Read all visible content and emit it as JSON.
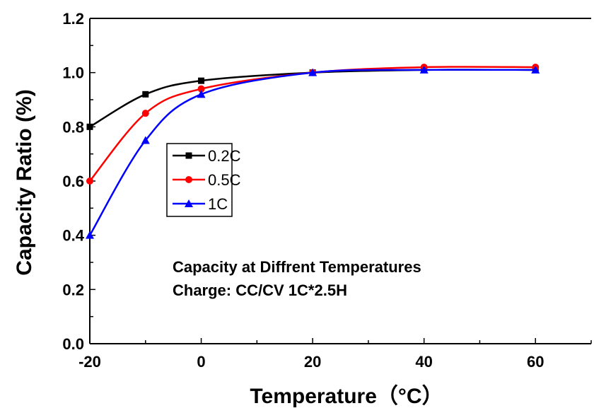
{
  "chart_data": {
    "type": "line",
    "title": "",
    "xlabel": "Temperature（°C）",
    "ylabel": "Capacity Ratio (%)",
    "xlim": [
      -20,
      70
    ],
    "ylim": [
      0.0,
      1.2
    ],
    "x_ticks": [
      "-20",
      "0",
      "20",
      "40",
      "60"
    ],
    "y_ticks": [
      "0.0",
      "0.2",
      "0.4",
      "0.6",
      "0.8",
      "1.0",
      "1.2"
    ],
    "grid": false,
    "legend_position": "center-left",
    "series": [
      {
        "name": "0.2C",
        "color": "#000000",
        "marker": "square",
        "x": [
          -20,
          -10,
          0,
          20,
          40,
          60
        ],
        "values": [
          0.8,
          0.92,
          0.97,
          1.0,
          1.01,
          1.01
        ]
      },
      {
        "name": "0.5C",
        "color": "#ff0000",
        "marker": "circle",
        "x": [
          -20,
          -10,
          0,
          20,
          40,
          60
        ],
        "values": [
          0.6,
          0.85,
          0.94,
          1.0,
          1.02,
          1.02
        ]
      },
      {
        "name": "1C",
        "color": "#0000ff",
        "marker": "triangle",
        "x": [
          -20,
          -10,
          0,
          20,
          40,
          60
        ],
        "values": [
          0.4,
          0.75,
          0.92,
          1.0,
          1.01,
          1.01
        ]
      }
    ],
    "annotations": [
      "Capacity at Diffrent Temperatures",
      "Charge: CC/CV 1C*2.5H"
    ]
  }
}
